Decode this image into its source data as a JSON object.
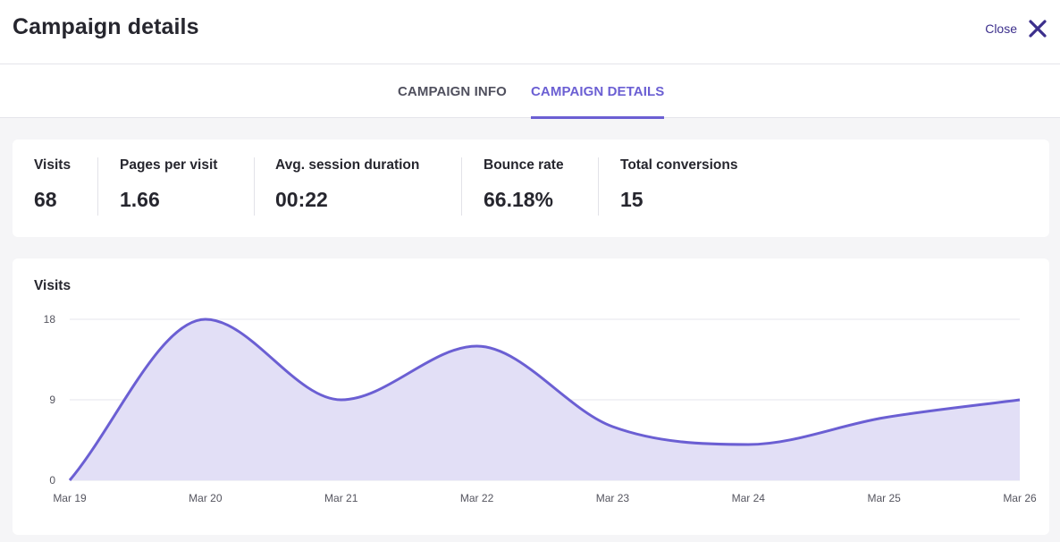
{
  "header": {
    "title": "Campaign details",
    "close_label": "Close"
  },
  "tabs": [
    {
      "label": "CAMPAIGN INFO",
      "active": false
    },
    {
      "label": "CAMPAIGN DETAILS",
      "active": true
    }
  ],
  "stats": [
    {
      "label": "Visits",
      "value": "68"
    },
    {
      "label": "Pages per visit",
      "value": "1.66"
    },
    {
      "label": "Avg. session duration",
      "value": "00:22"
    },
    {
      "label": "Bounce rate",
      "value": "66.18%"
    },
    {
      "label": "Total conversions",
      "value": "15"
    }
  ],
  "chart": {
    "title": "Visits"
  },
  "chart_data": {
    "type": "area",
    "title": "Visits",
    "categories": [
      "Mar 19",
      "Mar 20",
      "Mar 21",
      "Mar 22",
      "Mar 23",
      "Mar 24",
      "Mar 25",
      "Mar 26"
    ],
    "series": [
      {
        "values": [
          0,
          18,
          9,
          15,
          6,
          4,
          7,
          9
        ]
      }
    ],
    "yticks": [
      0,
      9,
      18
    ],
    "ylim": [
      0,
      18
    ],
    "grid": true,
    "colors": {
      "line": "#6b5fd3",
      "fill": "#e2dff6",
      "grid": "#e6e6ec"
    }
  }
}
